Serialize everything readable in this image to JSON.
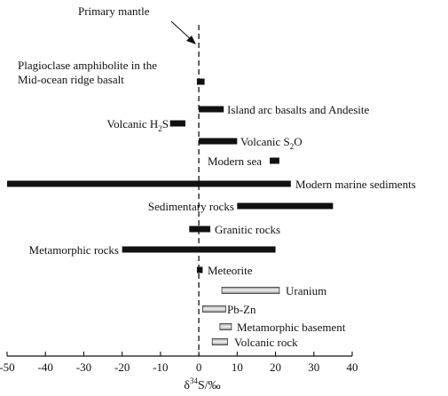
{
  "chart_data": {
    "type": "range-bar",
    "xlabel_main": "δ",
    "xlabel_sup": "34",
    "xlabel_rest": "S/‰",
    "xlim": [
      -50,
      40
    ],
    "xticks": [
      -50,
      -40,
      -30,
      -20,
      -10,
      0,
      10,
      20,
      30,
      40
    ],
    "reference_line": {
      "x": 0,
      "label": "Primary  mantle"
    },
    "ranges": [
      {
        "label_lines": [
          "Plagioclase amphibolite in the",
          "Mid-ocean ridge basalt"
        ],
        "min": -0.5,
        "max": 1.5,
        "style": "solid"
      },
      {
        "label_lines": [
          "Island arc basalts and Andesite"
        ],
        "min": 0,
        "max": 6.5,
        "style": "solid"
      },
      {
        "label_parts": [
          "Volcanic H",
          "2",
          "S"
        ],
        "min": -7.5,
        "max": -3.5,
        "style": "solid"
      },
      {
        "label_parts": [
          "Volcanic S",
          "2",
          "O"
        ],
        "min": 0,
        "max": 10,
        "style": "solid"
      },
      {
        "label_lines": [
          "Modern sea"
        ],
        "min": 18.5,
        "max": 21,
        "style": "solid"
      },
      {
        "label_lines": [
          "Modern marine sediments"
        ],
        "min": -50,
        "max": 24,
        "style": "solid"
      },
      {
        "label_lines": [
          "Sedimentary rocks"
        ],
        "min": 10,
        "max": 35,
        "style": "solid"
      },
      {
        "label_lines": [
          "Granitic rocks"
        ],
        "min": -2.5,
        "max": 3,
        "style": "solid"
      },
      {
        "label_lines": [
          "Metamorphic rocks"
        ],
        "min": -20,
        "max": 20,
        "style": "solid"
      },
      {
        "label_lines": [
          "Meteorite"
        ],
        "min": -0.5,
        "max": 1,
        "style": "solid"
      },
      {
        "label_lines": [
          "Uranium"
        ],
        "min": 6,
        "max": 21,
        "style": "gradient"
      },
      {
        "label_lines": [
          "Pb-Zn"
        ],
        "min": 1,
        "max": 7,
        "style": "gradient"
      },
      {
        "label_lines": [
          "Metamorphic basement"
        ],
        "min": 5.5,
        "max": 8.5,
        "style": "gradient"
      },
      {
        "label_lines": [
          "Volcanic rock"
        ],
        "min": 3.5,
        "max": 7.5,
        "style": "gradient"
      }
    ]
  }
}
